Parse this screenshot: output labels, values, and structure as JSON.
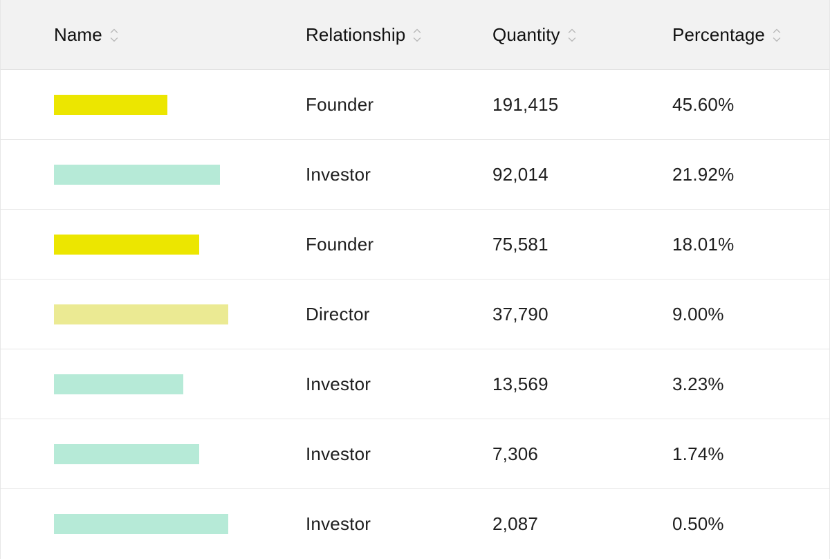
{
  "columns": {
    "name": "Name",
    "relationship": "Relationship",
    "quantity": "Quantity",
    "percentage": "Percentage"
  },
  "colors": {
    "founder": "#ece600",
    "investor": "#b6ead7",
    "director": "#ebea93",
    "header_bg": "#f2f2f2"
  },
  "rows": [
    {
      "relationship": "Founder",
      "quantity": "191,415",
      "percentage": "45.60%",
      "name_color": "#ece600"
    },
    {
      "relationship": "Investor",
      "quantity": "92,014",
      "percentage": "21.92%",
      "name_color": "#b6ead7"
    },
    {
      "relationship": "Founder",
      "quantity": "75,581",
      "percentage": "18.01%",
      "name_color": "#ece600"
    },
    {
      "relationship": "Director",
      "quantity": "37,790",
      "percentage": "9.00%",
      "name_color": "#ebea93"
    },
    {
      "relationship": "Investor",
      "quantity": "13,569",
      "percentage": "3.23%",
      "name_color": "#b6ead7"
    },
    {
      "relationship": "Investor",
      "quantity": "7,306",
      "percentage": "1.74%",
      "name_color": "#b6ead7"
    },
    {
      "relationship": "Investor",
      "quantity": "2,087",
      "percentage": "0.50%",
      "name_color": "#b6ead7"
    }
  ]
}
